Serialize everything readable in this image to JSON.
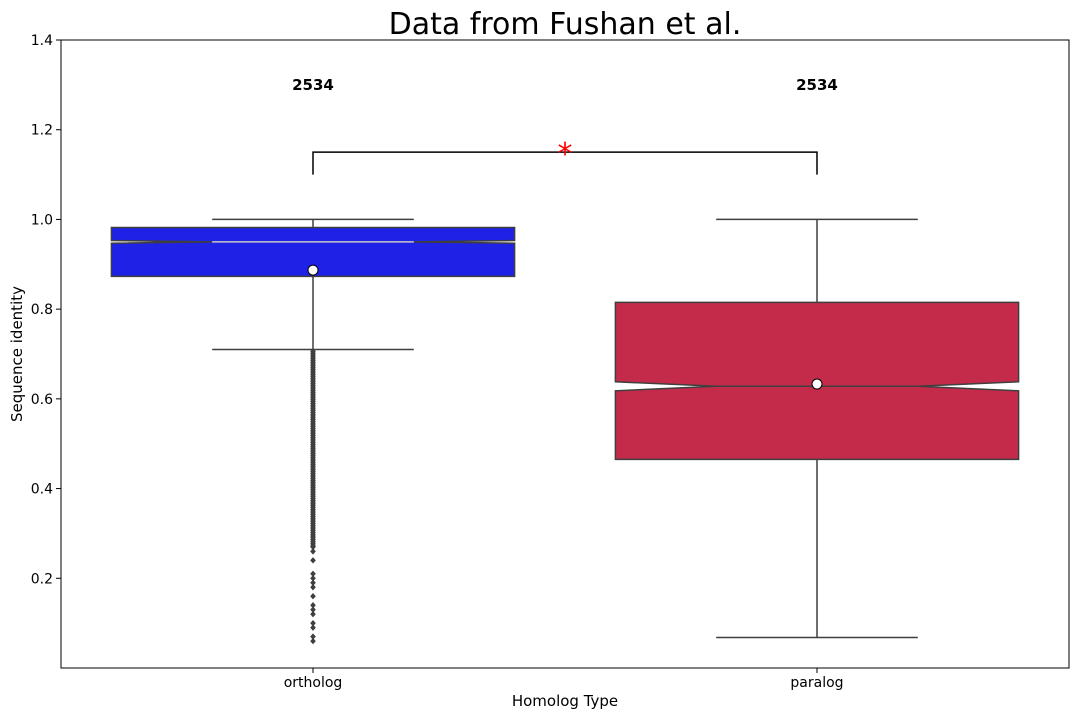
{
  "chart_data": {
    "type": "box",
    "title": "Data from Fushan et al.",
    "xlabel": "Homolog Type",
    "ylabel": "Sequence identity",
    "ylim": [
      0.0,
      1.4
    ],
    "yticks": [
      "0.2",
      "0.4",
      "0.6",
      "0.8",
      "1.0",
      "1.2",
      "1.4"
    ],
    "yticks_values": [
      0.2,
      0.4,
      0.6,
      0.8,
      1.0,
      1.2,
      1.4
    ],
    "categories": [
      "ortholog",
      "paralog"
    ],
    "series": [
      {
        "category": "ortholog",
        "color": "#1f22e6",
        "whisker_low": 0.71,
        "q1": 0.873,
        "median": 0.95,
        "q3": 0.982,
        "whisker_high": 1.0,
        "notch_low": 0.947,
        "notch_high": 0.953,
        "mean": 0.887,
        "count_label": "2534",
        "outlier_range": [
          0.06,
          0.71
        ],
        "outliers_sample": [
          0.06,
          0.07,
          0.09,
          0.1,
          0.12,
          0.13,
          0.14,
          0.16,
          0.18,
          0.19,
          0.2,
          0.21,
          0.24,
          0.26,
          0.27
        ]
      },
      {
        "category": "paralog",
        "color": "#c42b4a",
        "whisker_low": 0.068,
        "q1": 0.465,
        "median": 0.628,
        "q3": 0.815,
        "whisker_high": 1.0,
        "notch_low": 0.618,
        "notch_high": 0.638,
        "mean": 0.633,
        "count_label": "2534",
        "outliers_sample": []
      }
    ],
    "significance": {
      "from": "ortholog",
      "to": "paralog",
      "y": 1.15,
      "label": "*",
      "color": "#ff0000"
    },
    "count_label_y": 1.3,
    "grid": false,
    "legend": "none"
  }
}
